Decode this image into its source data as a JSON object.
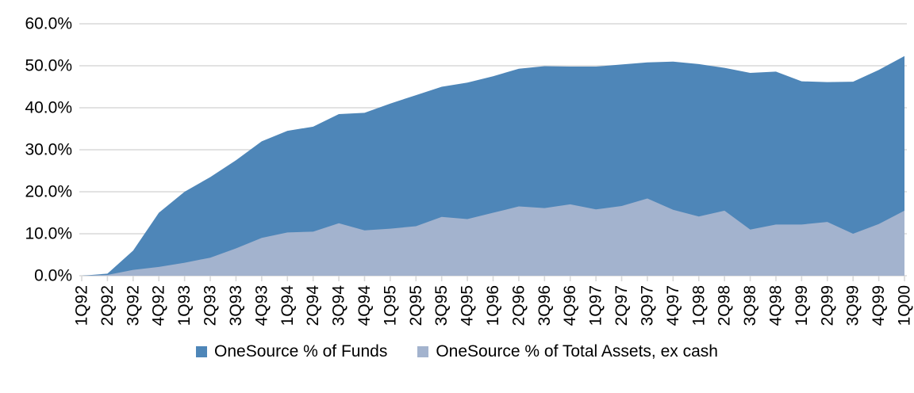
{
  "chart_data": {
    "type": "area",
    "title": "",
    "categories": [
      "1Q92",
      "2Q92",
      "3Q92",
      "4Q92",
      "1Q93",
      "2Q93",
      "3Q93",
      "4Q93",
      "1Q94",
      "2Q94",
      "3Q94",
      "4Q94",
      "1Q95",
      "2Q95",
      "3Q95",
      "4Q95",
      "1Q96",
      "2Q96",
      "3Q96",
      "4Q96",
      "1Q97",
      "2Q97",
      "3Q97",
      "4Q97",
      "1Q98",
      "2Q98",
      "3Q98",
      "4Q98",
      "1Q99",
      "2Q99",
      "3Q99",
      "4Q99",
      "1Q00"
    ],
    "series": [
      {
        "name": "OneSource % of Funds",
        "color": "#4E86B8",
        "values": [
          0,
          0.5,
          6,
          15,
          20,
          23.5,
          27.5,
          32,
          34.5,
          35.5,
          38.5,
          38.8,
          41,
          43,
          45,
          46,
          47.5,
          49.3,
          49.9,
          49.8,
          49.8,
          50.3,
          50.8,
          51,
          50.4,
          49.5,
          48.3,
          48.6,
          46.3,
          46.1,
          46.2,
          49,
          52.3
        ]
      },
      {
        "name": "OneSource % of Total Assets, ex cash",
        "color": "#A3B3CE",
        "values": [
          0,
          0.2,
          1.4,
          2.1,
          3.1,
          4.3,
          6.5,
          9,
          10.3,
          10.5,
          12.5,
          10.8,
          11.2,
          11.8,
          14,
          13.5,
          15,
          16.5,
          16.1,
          17,
          15.8,
          16.6,
          18.4,
          15.7,
          14.1,
          15.5,
          11,
          12.2,
          12.2,
          12.8,
          10,
          12.3,
          15.5
        ]
      }
    ],
    "xlabel": "",
    "ylabel": "",
    "ylim": [
      0,
      60
    ],
    "y_axis": {
      "min": 0,
      "max": 60,
      "step": 10,
      "tick_labels": [
        "0.0%",
        "10.0%",
        "20.0%",
        "30.0%",
        "40.0%",
        "50.0%",
        "60.0%"
      ]
    },
    "grid": true,
    "gridline_color": "#D9D9D9",
    "background": "#FFFFFF",
    "text_color": "#000000",
    "legend_position": "bottom"
  }
}
